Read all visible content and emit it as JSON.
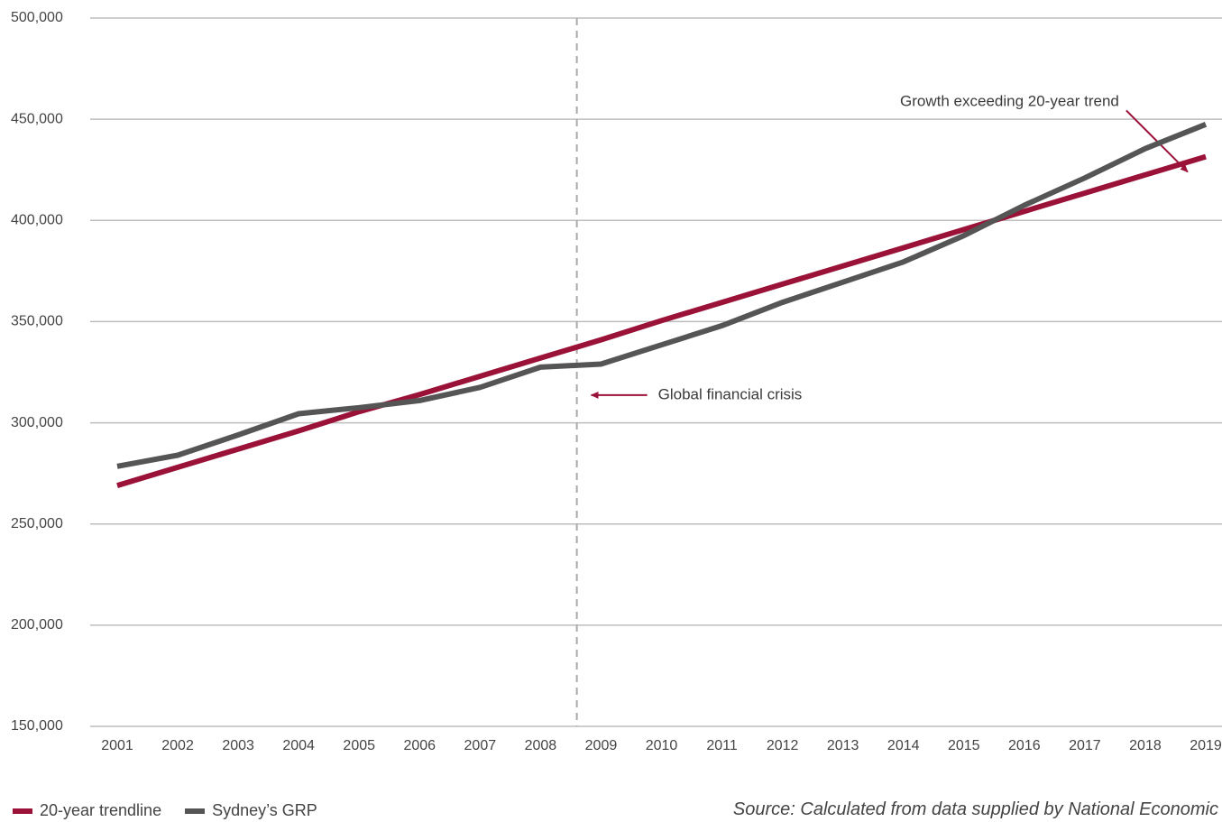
{
  "chart_data": {
    "type": "line",
    "x": [
      2001,
      2002,
      2003,
      2004,
      2005,
      2006,
      2007,
      2008,
      2009,
      2010,
      2011,
      2012,
      2013,
      2014,
      2015,
      2016,
      2017,
      2018,
      2019
    ],
    "x_tick_labels": [
      "2001",
      "2002",
      "2003",
      "2004",
      "2005",
      "2006",
      "2007",
      "2008",
      "2009",
      "2010",
      "2011",
      "2012",
      "2013",
      "2014",
      "2015",
      "2016",
      "2017",
      "2018",
      "2019"
    ],
    "y_ticks": [
      150000,
      200000,
      250000,
      300000,
      350000,
      400000,
      450000,
      500000
    ],
    "y_tick_labels": [
      "150,000",
      "200,000",
      "250,000",
      "300,000",
      "350,000",
      "400,000",
      "450,000",
      "500,000"
    ],
    "ylim": [
      150000,
      500000
    ],
    "grid": "horizontal",
    "legend_position": "bottom-left",
    "series": [
      {
        "name": "20-year trendline",
        "color": "#9b1238",
        "values": [
          269000,
          278000,
          287000,
          296000,
          305500,
          314000,
          323000,
          332000,
          341000,
          350500,
          359500,
          368500,
          377500,
          386500,
          395500,
          404500,
          413500,
          422500,
          431500
        ]
      },
      {
        "name": "Sydney’s GRP",
        "color": "#555555",
        "values": [
          278500,
          284000,
          294000,
          304500,
          307500,
          311000,
          317500,
          327500,
          329000,
          338500,
          348000,
          359500,
          369500,
          379500,
          392500,
          407500,
          421000,
          435500,
          447500
        ]
      }
    ],
    "annotations": [
      {
        "text": "Global financial crisis",
        "marker_x": 2008.6,
        "arrow_y": 315000
      },
      {
        "text": "Growth exceeding 20-year trend",
        "arrow_to": [
          2018.7,
          424000
        ]
      }
    ],
    "source": "Source: Calculated from data supplied by National Economic"
  }
}
